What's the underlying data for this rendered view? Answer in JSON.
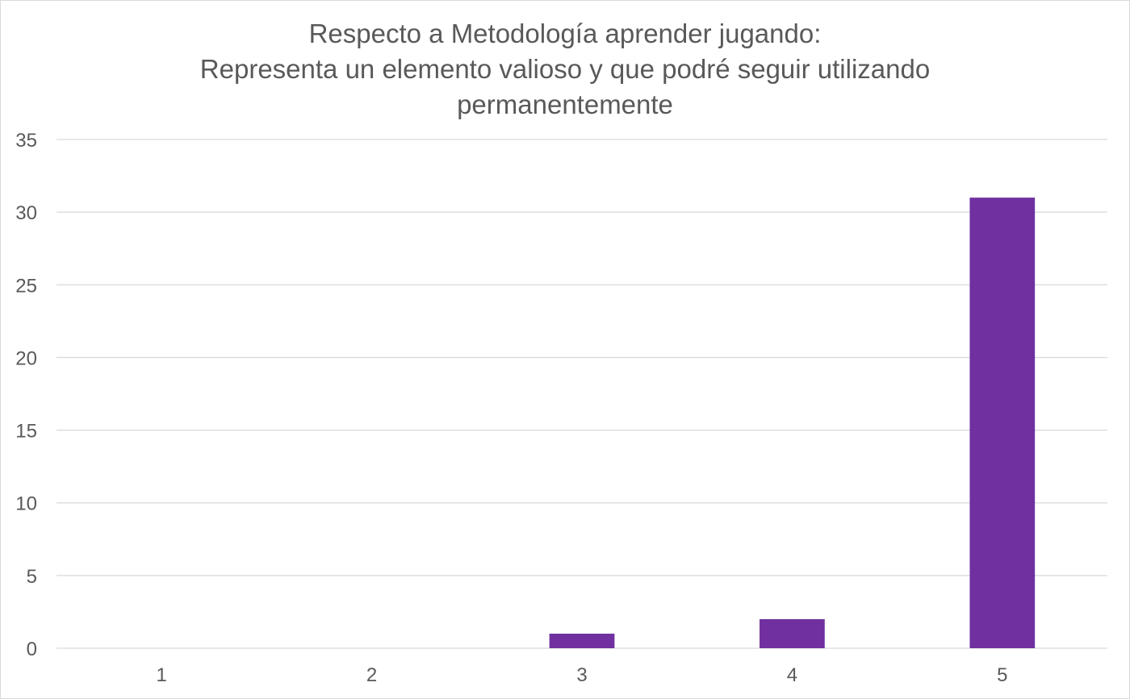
{
  "chart_data": {
    "type": "bar",
    "title_lines": [
      "Respecto a Metodología aprender jugando:",
      "Representa un elemento valioso y que podré seguir utilizando",
      "permanentemente"
    ],
    "categories": [
      "1",
      "2",
      "3",
      "4",
      "5"
    ],
    "values": [
      0,
      0,
      1,
      2,
      31
    ],
    "xlabel": "",
    "ylabel": "",
    "ylim": [
      0,
      35
    ],
    "yticks": [
      0,
      5,
      10,
      15,
      20,
      25,
      30,
      35
    ],
    "grid": true,
    "legend": "none",
    "bar_color": "#7030a0",
    "gridline_color": "#d9d9d9",
    "text_color": "#595959"
  }
}
